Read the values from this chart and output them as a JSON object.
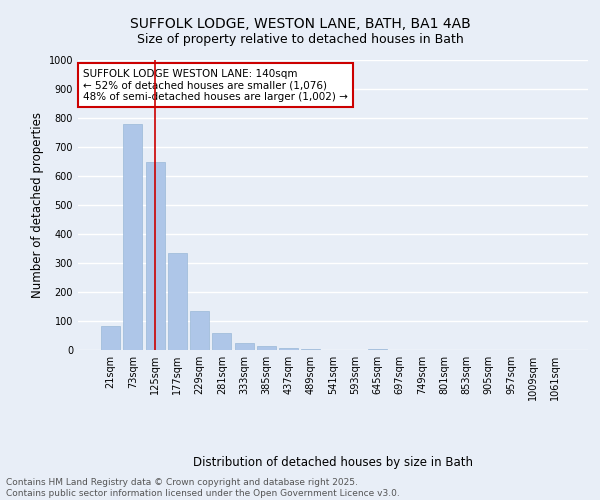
{
  "title_line1": "SUFFOLK LODGE, WESTON LANE, BATH, BA1 4AB",
  "title_line2": "Size of property relative to detached houses in Bath",
  "xlabel": "Distribution of detached houses by size in Bath",
  "ylabel": "Number of detached properties",
  "categories": [
    "21sqm",
    "73sqm",
    "125sqm",
    "177sqm",
    "229sqm",
    "281sqm",
    "333sqm",
    "385sqm",
    "437sqm",
    "489sqm",
    "541sqm",
    "593sqm",
    "645sqm",
    "697sqm",
    "749sqm",
    "801sqm",
    "853sqm",
    "905sqm",
    "957sqm",
    "1009sqm",
    "1061sqm"
  ],
  "values": [
    82,
    780,
    648,
    335,
    133,
    57,
    25,
    15,
    8,
    3,
    0,
    0,
    4,
    0,
    0,
    0,
    0,
    0,
    0,
    0,
    0
  ],
  "bar_color": "#aec6e8",
  "bar_edge_color": "#9ab8d8",
  "vline_x": 2,
  "vline_color": "#cc0000",
  "annotation_text": "SUFFOLK LODGE WESTON LANE: 140sqm\n← 52% of detached houses are smaller (1,076)\n48% of semi-detached houses are larger (1,002) →",
  "annotation_box_color": "#ffffff",
  "annotation_box_edgecolor": "#cc0000",
  "ylim": [
    0,
    1000
  ],
  "yticks": [
    0,
    100,
    200,
    300,
    400,
    500,
    600,
    700,
    800,
    900,
    1000
  ],
  "bg_color": "#e8eef7",
  "plot_bg_color": "#e8eef7",
  "grid_color": "#ffffff",
  "footer_line1": "Contains HM Land Registry data © Crown copyright and database right 2025.",
  "footer_line2": "Contains public sector information licensed under the Open Government Licence v3.0.",
  "title_fontsize": 10,
  "subtitle_fontsize": 9,
  "tick_fontsize": 7,
  "label_fontsize": 8.5,
  "annotation_fontsize": 7.5,
  "footer_fontsize": 6.5
}
